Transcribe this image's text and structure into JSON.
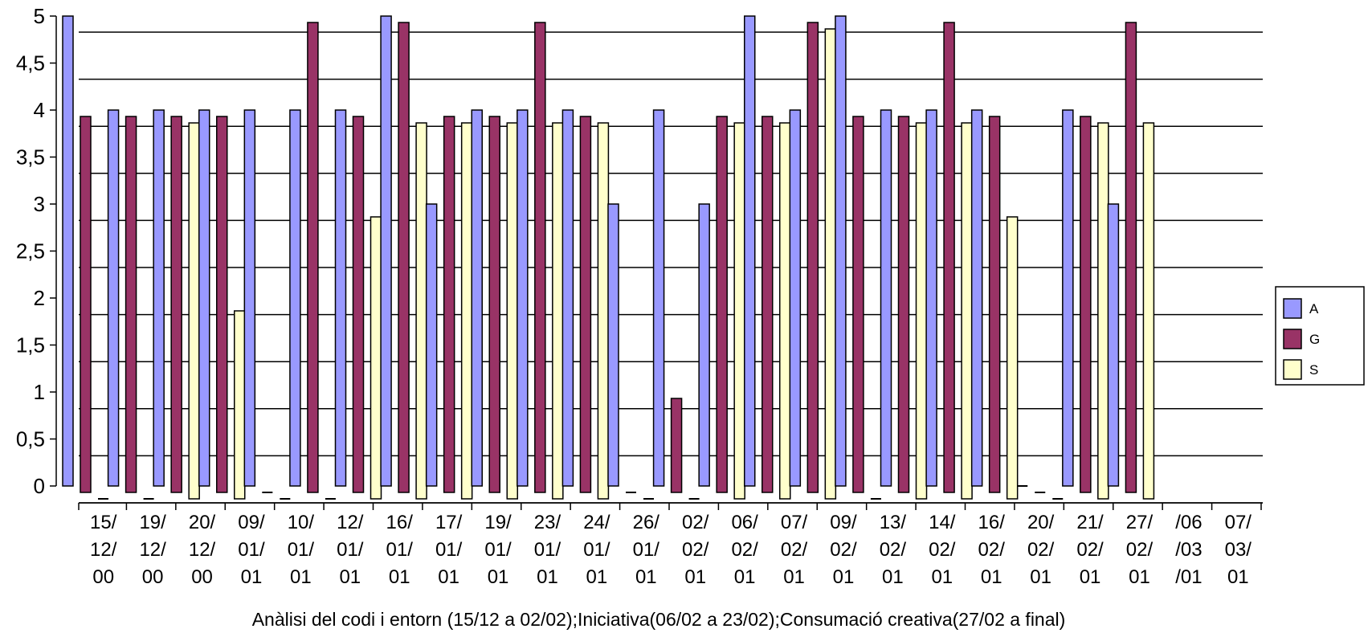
{
  "chart_data": {
    "type": "bar",
    "title": "",
    "xlabel": "Anàlisi  del codi i entorn (15/12 a 02/02);Iniciativa(06/02 a 23/02);Consumació creativa(27/02  a final)",
    "ylabel": "",
    "ylim": [
      0,
      5
    ],
    "yticks": [
      "0",
      "0,5",
      "1",
      "1,5",
      "2",
      "2,5",
      "3",
      "3,5",
      "4",
      "4,5",
      "5"
    ],
    "grid": true,
    "legend": "right",
    "categories": [
      [
        "15/",
        "12/",
        "00"
      ],
      [
        "19/",
        "12/",
        "00"
      ],
      [
        "20/",
        "12/",
        "00"
      ],
      [
        "09/",
        "01/",
        "01"
      ],
      [
        "10/",
        "01/",
        "01"
      ],
      [
        "12/",
        "01/",
        "01"
      ],
      [
        "16/",
        "01/",
        "01"
      ],
      [
        "17/",
        "01/",
        "01"
      ],
      [
        "19/",
        "01/",
        "01"
      ],
      [
        "23/",
        "01/",
        "01"
      ],
      [
        "24/",
        "01/",
        "01"
      ],
      [
        "26/",
        "01/",
        "01"
      ],
      [
        "02/",
        "02/",
        "01"
      ],
      [
        "06/",
        "02/",
        "01"
      ],
      [
        "07/",
        "02/",
        "01"
      ],
      [
        "09/",
        "02/",
        "01"
      ],
      [
        "13/",
        "02/",
        "01"
      ],
      [
        "14/",
        "02/",
        "01"
      ],
      [
        "16/",
        "02/",
        "01"
      ],
      [
        "20/",
        "02/",
        "01"
      ],
      [
        "21/",
        "02/",
        "01"
      ],
      [
        "27/",
        "02/",
        "01"
      ],
      [
        "/06",
        "/03",
        "/01"
      ],
      [
        "07/",
        "03/",
        "01"
      ]
    ],
    "series": [
      {
        "name": "A",
        "color": "#9999ff",
        "values": [
          5,
          4,
          4,
          4,
          4,
          4,
          4,
          5,
          3,
          4,
          4,
          4,
          3,
          4,
          3,
          5,
          4,
          5,
          4,
          4,
          4,
          0,
          4,
          3
        ]
      },
      {
        "name": "G",
        "color": "#993366",
        "values": [
          4,
          4,
          4,
          4,
          0,
          5,
          4,
          5,
          4,
          4,
          5,
          4,
          0,
          1,
          4,
          4,
          5,
          4,
          4,
          5,
          4,
          0,
          4,
          5
        ]
      },
      {
        "name": "S",
        "color": "#ffffcc",
        "values": [
          0,
          0,
          4,
          2,
          0,
          0,
          3,
          4,
          4,
          4,
          4,
          4,
          0,
          0,
          4,
          4,
          5,
          0,
          4,
          4,
          3,
          0,
          4,
          4
        ]
      }
    ]
  }
}
